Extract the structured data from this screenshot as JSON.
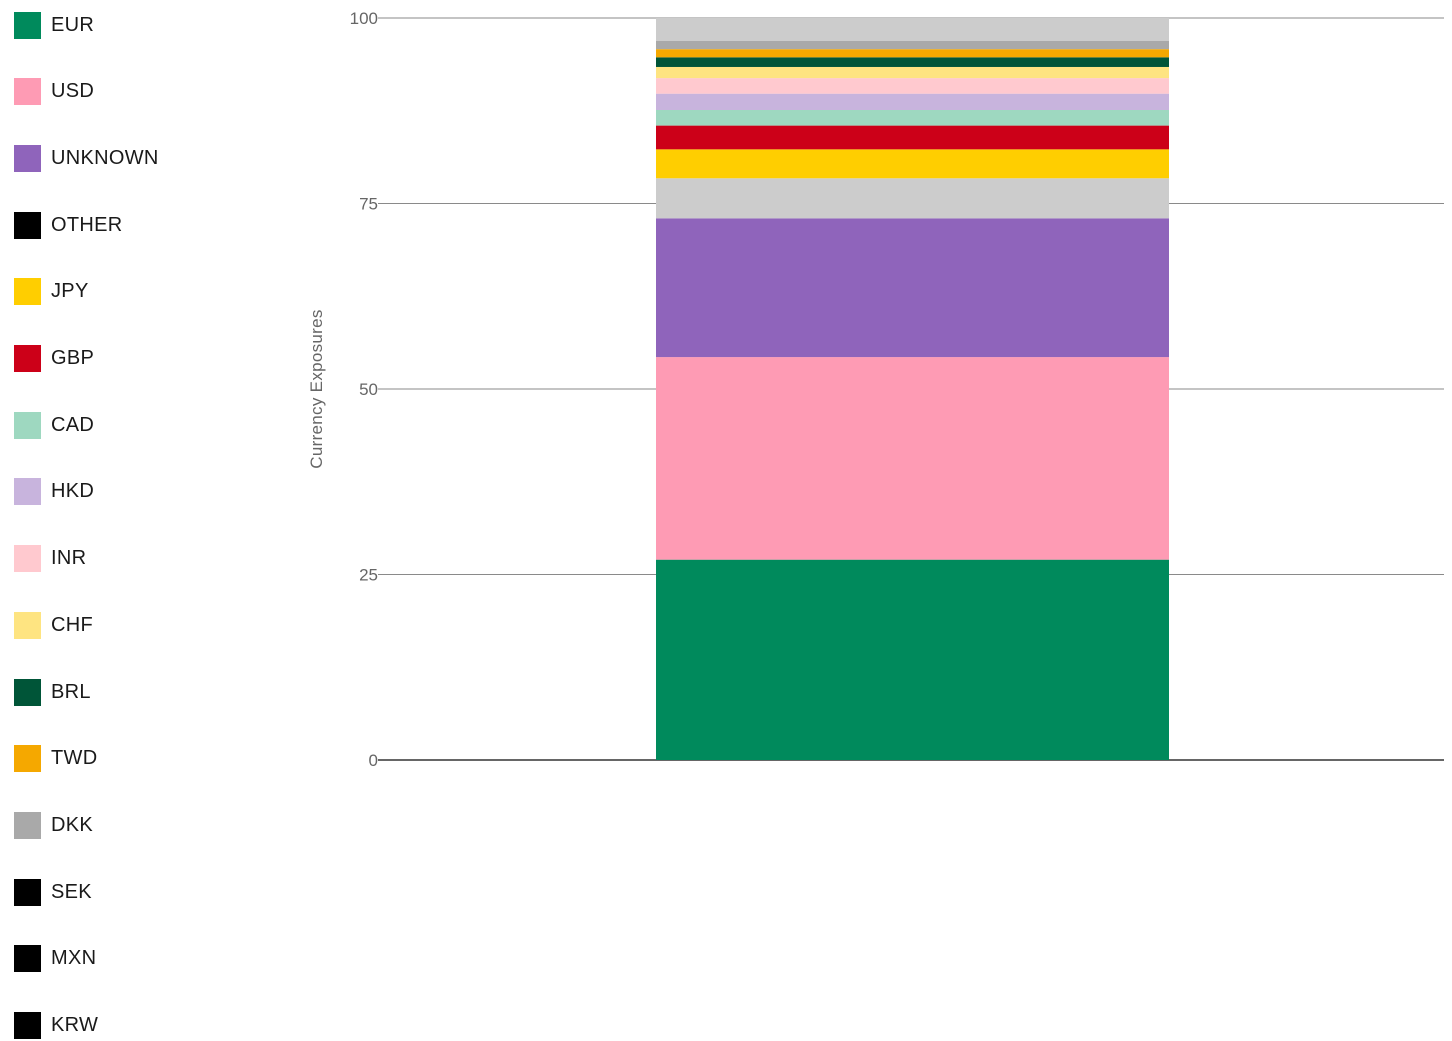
{
  "chart_data": {
    "type": "bar",
    "stacked": true,
    "categories": [
      ""
    ],
    "ylabel": "Currency Exposures",
    "ylim": [
      0,
      100
    ],
    "yticks": [
      0,
      25,
      50,
      75,
      100
    ],
    "grid": true,
    "legend_position": "left",
    "series": [
      {
        "name": "EUR",
        "values": [
          27.0
        ],
        "color": "#008A5C"
      },
      {
        "name": "USD",
        "values": [
          27.3
        ],
        "color": "#FE9BB4"
      },
      {
        "name": "UNKNOWN",
        "values": [
          18.7
        ],
        "color": "#8F64BB"
      },
      {
        "name": "OTHER",
        "values": [
          5.4
        ],
        "color": "#CCCCCC",
        "legend_color": "#000000"
      },
      {
        "name": "JPY",
        "values": [
          3.9
        ],
        "color": "#FFCE00"
      },
      {
        "name": "GBP",
        "values": [
          3.2
        ],
        "color": "#CC0018"
      },
      {
        "name": "CAD",
        "values": [
          2.1
        ],
        "color": "#9ED8C0"
      },
      {
        "name": "HKD",
        "values": [
          2.2
        ],
        "color": "#C8B4DD"
      },
      {
        "name": "INR",
        "values": [
          2.1
        ],
        "color": "#FFC9CF"
      },
      {
        "name": "CHF",
        "values": [
          1.5
        ],
        "color": "#FEE481"
      },
      {
        "name": "BRL",
        "values": [
          1.3
        ],
        "color": "#005538"
      },
      {
        "name": "TWD",
        "values": [
          1.1
        ],
        "color": "#F5A800"
      },
      {
        "name": "DKK",
        "values": [
          1.1
        ],
        "color": "#A9A9A9"
      },
      {
        "name": "SEK",
        "values": [
          0
        ],
        "color": "#000000"
      },
      {
        "name": "MXN",
        "values": [
          0
        ],
        "color": "#000000"
      },
      {
        "name": "KRW",
        "values": [
          0
        ],
        "color": "#000000"
      }
    ],
    "remainder_color": "#CCCCCC"
  }
}
